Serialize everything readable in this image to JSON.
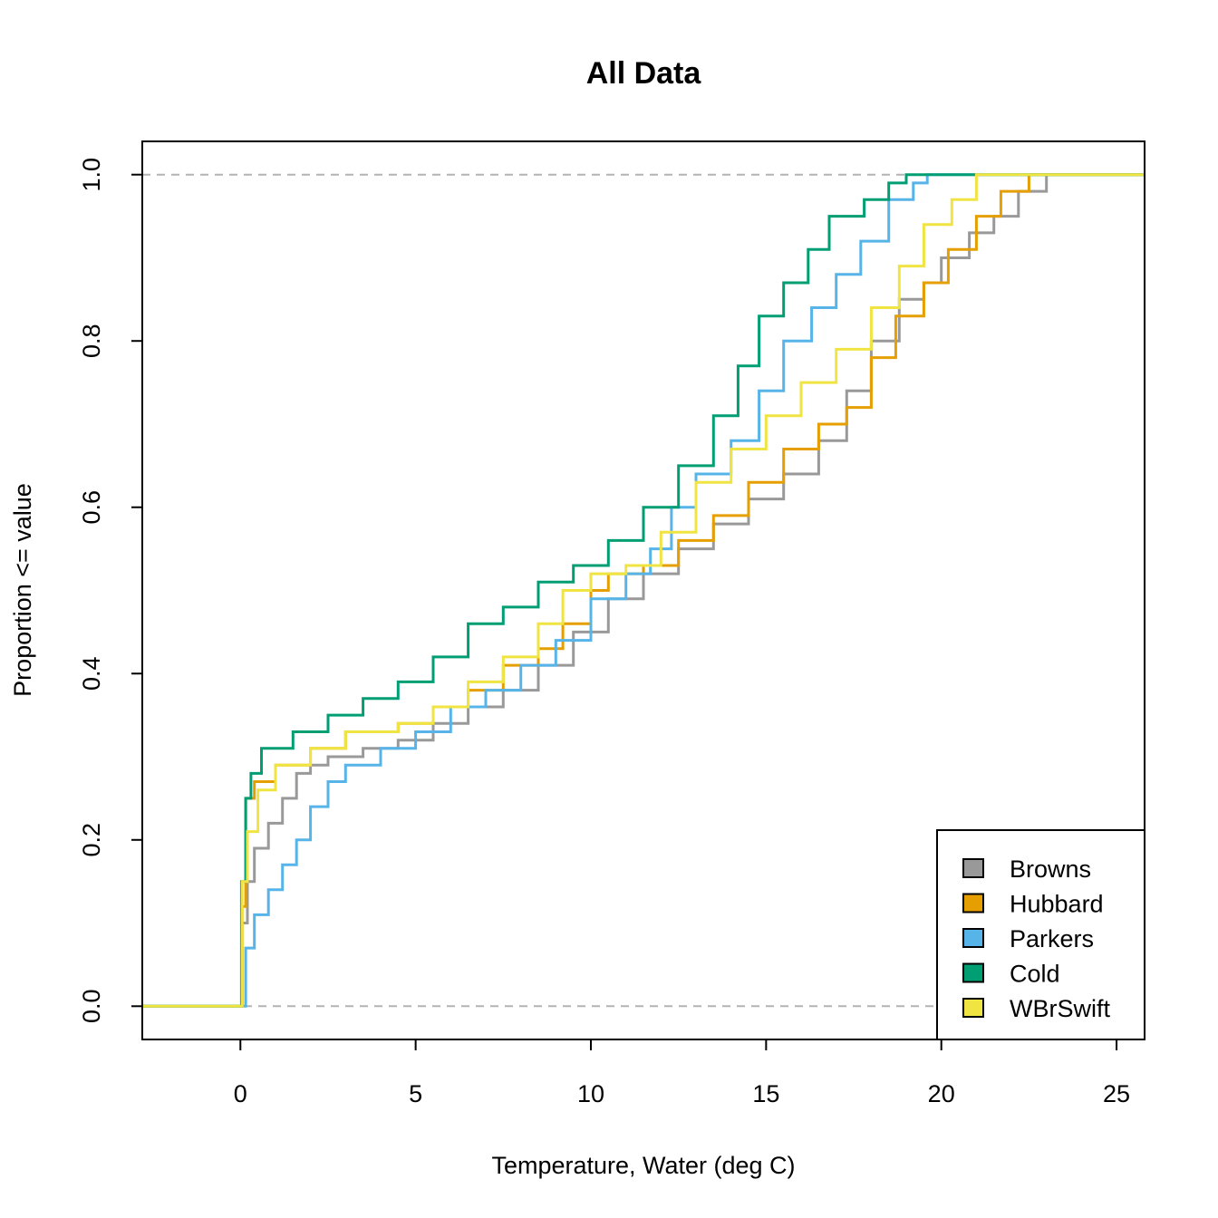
{
  "chart_data": {
    "type": "line",
    "title": "All Data",
    "xlabel": "Temperature, Water (deg C)",
    "ylabel": "Proportion <= value",
    "xlim": [
      -2.8,
      25.8
    ],
    "ylim": [
      -0.04,
      1.04
    ],
    "x_ticks": [
      0,
      5,
      10,
      15,
      20,
      25
    ],
    "x_tick_labels": [
      "0",
      "5",
      "10",
      "15",
      "20",
      "25"
    ],
    "y_ticks": [
      0.0,
      0.2,
      0.4,
      0.6,
      0.8,
      1.0
    ],
    "y_tick_labels": [
      "0.0",
      "0.2",
      "0.4",
      "0.6",
      "0.8",
      "1.0"
    ],
    "reference_lines_y": [
      0,
      1
    ],
    "grid": false,
    "legend_position": "bottom-right",
    "series": [
      {
        "name": "Browns",
        "color": "#999999",
        "points": [
          [
            -3,
            0
          ],
          [
            0,
            0
          ],
          [
            0.05,
            0.1
          ],
          [
            0.2,
            0.15
          ],
          [
            0.4,
            0.19
          ],
          [
            0.8,
            0.22
          ],
          [
            1.2,
            0.25
          ],
          [
            1.6,
            0.28
          ],
          [
            2.0,
            0.29
          ],
          [
            2.5,
            0.3
          ],
          [
            3.5,
            0.31
          ],
          [
            4.5,
            0.32
          ],
          [
            5.5,
            0.34
          ],
          [
            6.5,
            0.36
          ],
          [
            7.5,
            0.38
          ],
          [
            8.5,
            0.41
          ],
          [
            9.5,
            0.45
          ],
          [
            10.5,
            0.49
          ],
          [
            11.5,
            0.52
          ],
          [
            12.5,
            0.55
          ],
          [
            13.5,
            0.58
          ],
          [
            14.5,
            0.61
          ],
          [
            15.5,
            0.64
          ],
          [
            16.5,
            0.68
          ],
          [
            17.3,
            0.74
          ],
          [
            18.0,
            0.8
          ],
          [
            18.8,
            0.85
          ],
          [
            19.5,
            0.87
          ],
          [
            20.0,
            0.9
          ],
          [
            20.8,
            0.93
          ],
          [
            21.5,
            0.95
          ],
          [
            22.2,
            0.98
          ],
          [
            23.0,
            1.0
          ],
          [
            26,
            1.0
          ]
        ]
      },
      {
        "name": "Hubbard",
        "color": "#E69F00",
        "points": [
          [
            -3,
            0
          ],
          [
            0,
            0
          ],
          [
            0.05,
            0.12
          ],
          [
            0.15,
            0.25
          ],
          [
            0.4,
            0.27
          ],
          [
            1.0,
            0.29
          ],
          [
            2.0,
            0.31
          ],
          [
            3.0,
            0.33
          ],
          [
            4.5,
            0.34
          ],
          [
            5.5,
            0.36
          ],
          [
            6.5,
            0.38
          ],
          [
            7.5,
            0.41
          ],
          [
            8.5,
            0.43
          ],
          [
            9.2,
            0.46
          ],
          [
            10.0,
            0.5
          ],
          [
            10.5,
            0.52
          ],
          [
            11.5,
            0.53
          ],
          [
            12.5,
            0.56
          ],
          [
            13.5,
            0.59
          ],
          [
            14.5,
            0.63
          ],
          [
            15.5,
            0.67
          ],
          [
            16.5,
            0.7
          ],
          [
            17.3,
            0.72
          ],
          [
            18.0,
            0.78
          ],
          [
            18.7,
            0.83
          ],
          [
            19.5,
            0.87
          ],
          [
            20.2,
            0.91
          ],
          [
            21.0,
            0.95
          ],
          [
            21.7,
            0.98
          ],
          [
            22.5,
            1.0
          ],
          [
            26,
            1.0
          ]
        ]
      },
      {
        "name": "Parkers",
        "color": "#56B4E9",
        "points": [
          [
            -3,
            0
          ],
          [
            0,
            0
          ],
          [
            0.1,
            0.0
          ],
          [
            0.15,
            0.07
          ],
          [
            0.4,
            0.11
          ],
          [
            0.8,
            0.14
          ],
          [
            1.2,
            0.17
          ],
          [
            1.6,
            0.2
          ],
          [
            2.0,
            0.24
          ],
          [
            2.5,
            0.27
          ],
          [
            3.0,
            0.29
          ],
          [
            4.0,
            0.31
          ],
          [
            5.0,
            0.33
          ],
          [
            6.0,
            0.36
          ],
          [
            7.0,
            0.38
          ],
          [
            8.0,
            0.41
          ],
          [
            9.0,
            0.44
          ],
          [
            10.0,
            0.49
          ],
          [
            11.0,
            0.52
          ],
          [
            11.7,
            0.55
          ],
          [
            12.3,
            0.6
          ],
          [
            13.0,
            0.64
          ],
          [
            14.0,
            0.68
          ],
          [
            14.8,
            0.74
          ],
          [
            15.5,
            0.8
          ],
          [
            16.3,
            0.84
          ],
          [
            17.0,
            0.88
          ],
          [
            17.7,
            0.92
          ],
          [
            18.5,
            0.97
          ],
          [
            19.2,
            0.99
          ],
          [
            19.6,
            1.0
          ],
          [
            26,
            1.0
          ]
        ]
      },
      {
        "name": "Cold",
        "color": "#009E73",
        "points": [
          [
            -3,
            0
          ],
          [
            0,
            0
          ],
          [
            0.03,
            0.15
          ],
          [
            0.15,
            0.25
          ],
          [
            0.3,
            0.28
          ],
          [
            0.6,
            0.31
          ],
          [
            1.5,
            0.33
          ],
          [
            2.5,
            0.35
          ],
          [
            3.5,
            0.37
          ],
          [
            4.5,
            0.39
          ],
          [
            5.5,
            0.42
          ],
          [
            6.5,
            0.46
          ],
          [
            7.5,
            0.48
          ],
          [
            8.5,
            0.51
          ],
          [
            9.5,
            0.53
          ],
          [
            10.5,
            0.56
          ],
          [
            11.5,
            0.6
          ],
          [
            12.5,
            0.65
          ],
          [
            13.5,
            0.71
          ],
          [
            14.2,
            0.77
          ],
          [
            14.8,
            0.83
          ],
          [
            15.5,
            0.87
          ],
          [
            16.2,
            0.91
          ],
          [
            16.8,
            0.95
          ],
          [
            17.8,
            0.97
          ],
          [
            18.5,
            0.99
          ],
          [
            19.0,
            1.0
          ],
          [
            26,
            1.0
          ]
        ]
      },
      {
        "name": "WBrSwift",
        "color": "#F0E442",
        "points": [
          [
            -3,
            0
          ],
          [
            0,
            0
          ],
          [
            0.05,
            0.15
          ],
          [
            0.2,
            0.21
          ],
          [
            0.5,
            0.26
          ],
          [
            1.0,
            0.29
          ],
          [
            2.0,
            0.31
          ],
          [
            3.0,
            0.33
          ],
          [
            4.5,
            0.34
          ],
          [
            5.5,
            0.36
          ],
          [
            6.5,
            0.39
          ],
          [
            7.5,
            0.42
          ],
          [
            8.5,
            0.46
          ],
          [
            9.2,
            0.5
          ],
          [
            10.0,
            0.52
          ],
          [
            11.0,
            0.53
          ],
          [
            12.0,
            0.57
          ],
          [
            13.0,
            0.63
          ],
          [
            14.0,
            0.67
          ],
          [
            15.0,
            0.71
          ],
          [
            16.0,
            0.75
          ],
          [
            17.0,
            0.79
          ],
          [
            18.0,
            0.84
          ],
          [
            18.8,
            0.89
          ],
          [
            19.5,
            0.94
          ],
          [
            20.3,
            0.97
          ],
          [
            21.0,
            1.0
          ],
          [
            26,
            1.0
          ]
        ]
      }
    ]
  }
}
